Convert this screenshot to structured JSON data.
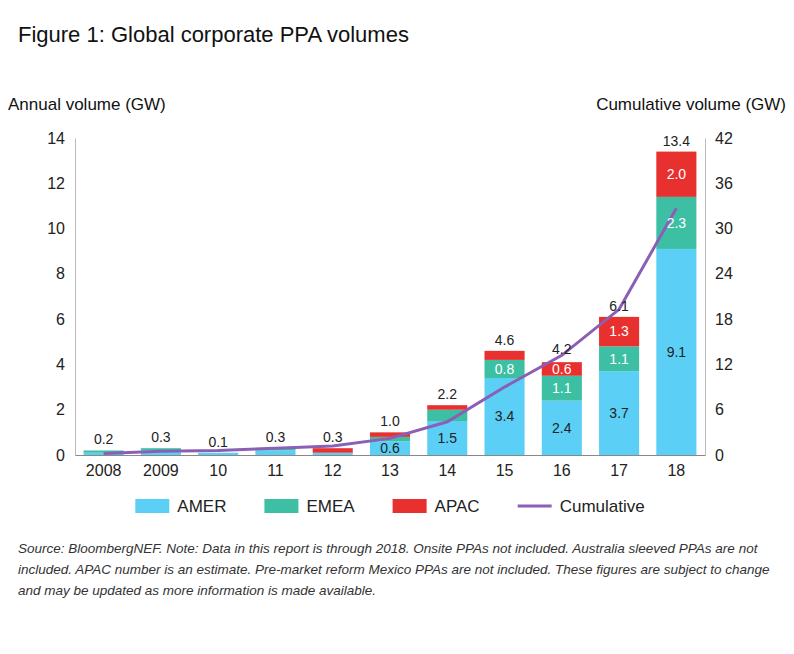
{
  "chart_data": {
    "type": "bar",
    "title": "Figure 1: Global corporate PPA volumes",
    "y_label": "Annual volume (GW)",
    "y2_label": "Cumulative volume (GW)",
    "note": "Source: BloombergNEF. Note: Data in this report is through 2018. Onsite PPAs not included. Australia sleeved PPAs are not included. APAC number is an estimate. Pre-market reform Mexico PPAs are not included. These figures are subject to change and may be updated as more information is made available.",
    "categories": [
      "2008",
      "2009",
      "10",
      "11",
      "12",
      "13",
      "14",
      "15",
      "16",
      "17",
      "18"
    ],
    "stacked": true,
    "data_labels": true,
    "legend": "bottom",
    "grid": false,
    "series": [
      {
        "name": "AMER",
        "type": "bar",
        "color": "#5bcff5",
        "values": [
          0.1,
          0.2,
          0.1,
          0.2,
          0.1,
          0.6,
          1.5,
          3.4,
          2.4,
          3.7,
          9.1
        ],
        "value_labels": [
          null,
          null,
          null,
          null,
          null,
          "0.6",
          "1.5",
          "3.4",
          "2.4",
          "3.7",
          "9.1"
        ]
      },
      {
        "name": "EMEA",
        "type": "bar",
        "color": "#3dbfa4",
        "values": [
          0.1,
          0.1,
          0,
          0.1,
          0,
          0.2,
          0.5,
          0.8,
          1.1,
          1.1,
          2.3
        ],
        "value_labels": [
          null,
          null,
          null,
          null,
          null,
          null,
          null,
          "0.8",
          "1.1",
          "1.1",
          "2.3"
        ]
      },
      {
        "name": "APAC",
        "type": "bar",
        "color": "#e8302e",
        "values": [
          0,
          0,
          0,
          0,
          0.2,
          0.2,
          0.2,
          0.4,
          0.6,
          1.3,
          2.0
        ],
        "value_labels": [
          null,
          null,
          null,
          null,
          null,
          null,
          null,
          null,
          "0.6",
          "1.3",
          "2.0"
        ]
      },
      {
        "name": "Cumulative",
        "type": "line",
        "axis": "y2",
        "color": "#8a5fb5",
        "line_style": "solid",
        "values": [
          0.2,
          0.5,
          0.6,
          0.9,
          1.2,
          2.2,
          4.4,
          9.0,
          13.2,
          19.3,
          32.7
        ]
      }
    ],
    "totals": [
      0.2,
      0.3,
      0.1,
      0.3,
      0.3,
      1.0,
      2.2,
      4.6,
      4.2,
      6.1,
      13.4
    ],
    "total_labels": [
      "0.2",
      "0.3",
      "0.1",
      "0.3",
      "0.3",
      "1.0",
      "2.2",
      "4.6",
      "4.2",
      "6.1",
      "13.4"
    ],
    "ylim": [
      0,
      14
    ],
    "yticks": [
      0,
      2,
      4,
      6,
      8,
      10,
      12,
      14
    ],
    "y2lim": [
      0,
      42
    ],
    "y2ticks": [
      0,
      6,
      12,
      18,
      24,
      30,
      36,
      42
    ]
  }
}
